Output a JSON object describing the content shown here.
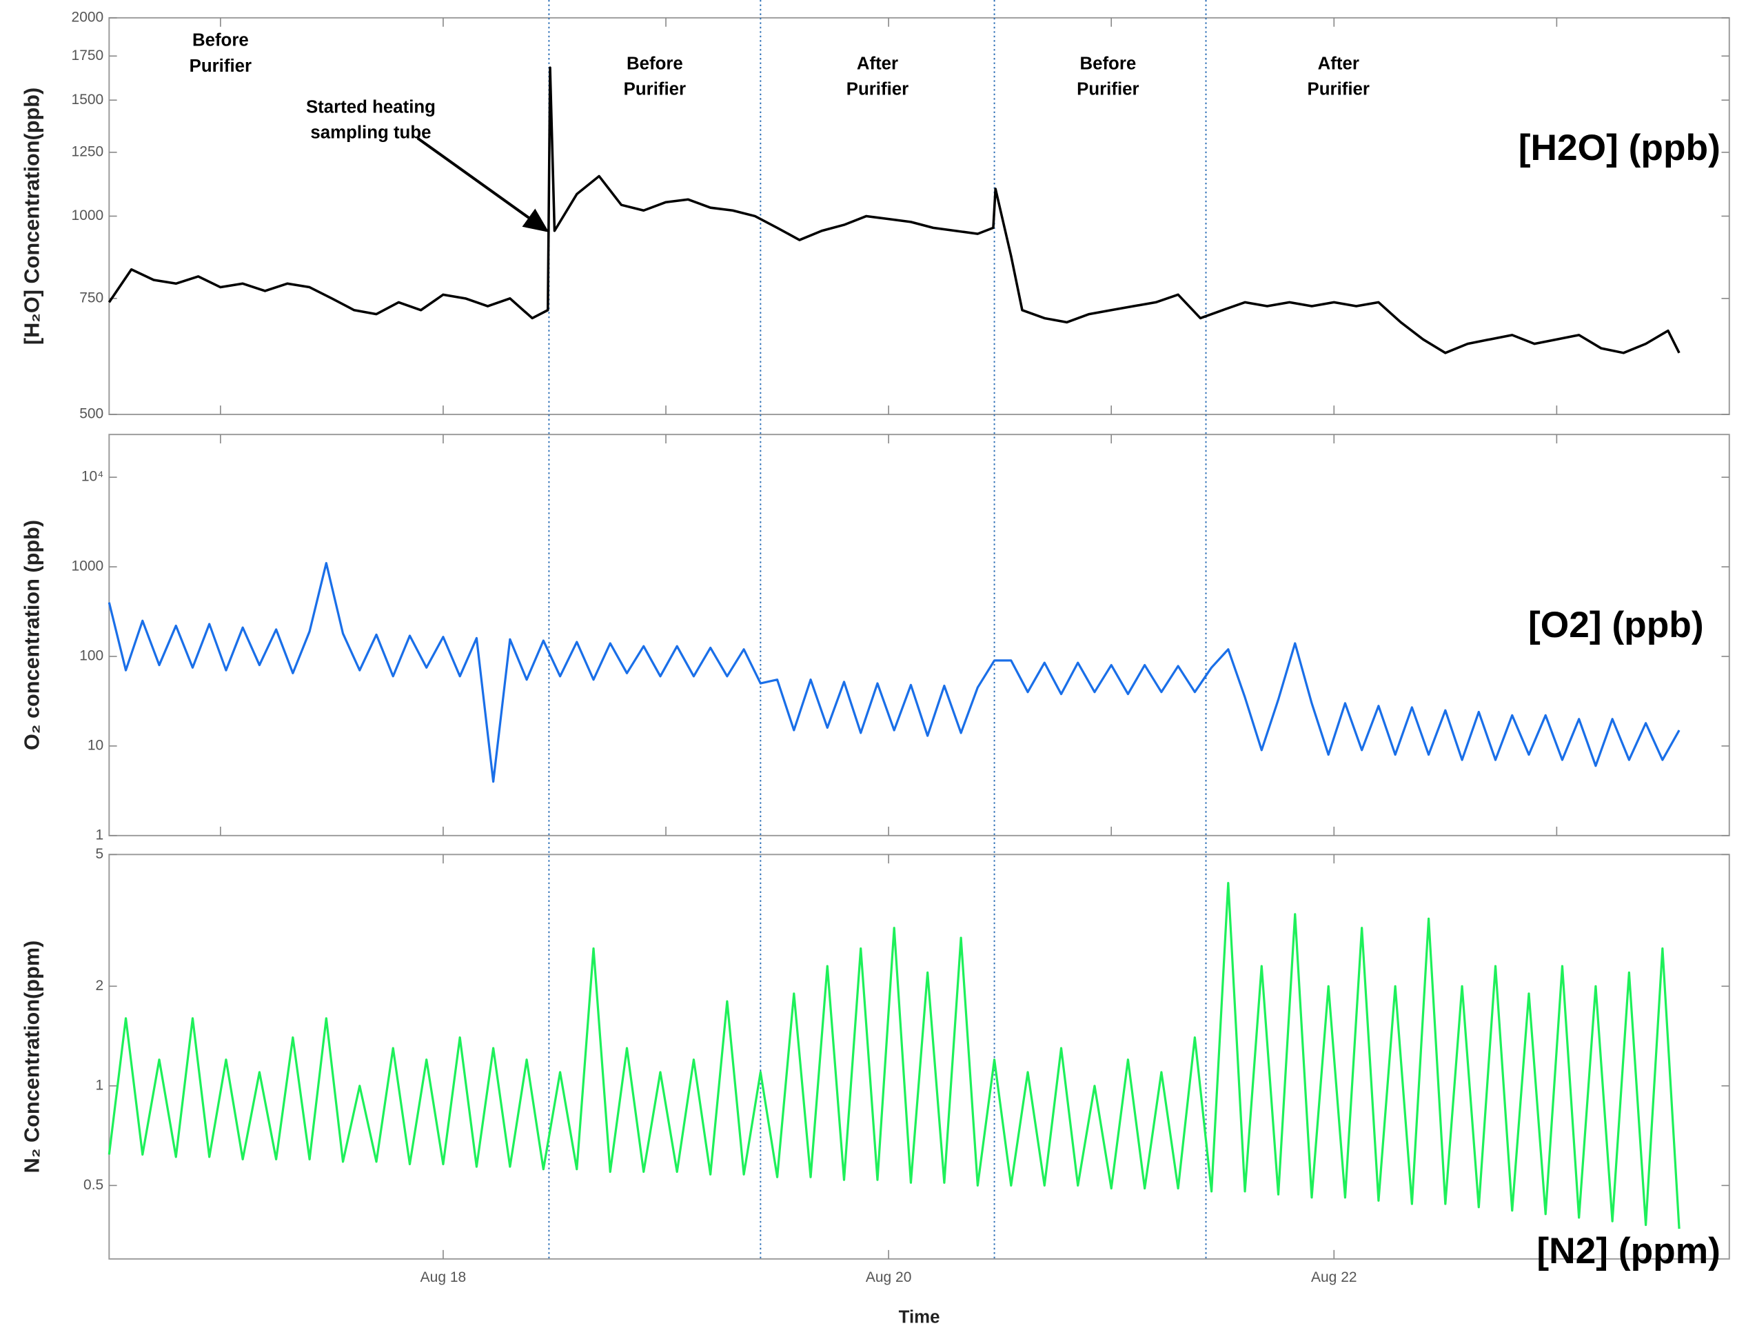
{
  "chart_data": [
    {
      "type": "line",
      "yscale": "log",
      "ylabel": "[H₂O] Concentration(ppb)",
      "xlim": [
        16.5,
        23.775
      ],
      "xticks": [
        17,
        18,
        19,
        20,
        21,
        22,
        23
      ],
      "ylim": [
        500,
        2000
      ],
      "yticks": [
        500,
        750,
        1000,
        1250,
        1500,
        1750,
        2000
      ],
      "event_lines": [
        18.475,
        19.425,
        20.475,
        21.425
      ],
      "annotations": [
        [
          "Before",
          "Purifier"
        ],
        [
          "Started heating",
          "sampling tube"
        ],
        [
          "Before",
          "Purifier"
        ],
        [
          "After",
          "Purifier"
        ],
        [
          "Before",
          "Purifier"
        ],
        [
          "After",
          "Purifier"
        ]
      ],
      "x": [
        16.5,
        16.6,
        16.7,
        16.8,
        16.9,
        17.0,
        17.1,
        17.2,
        17.3,
        17.4,
        17.5,
        17.6,
        17.7,
        17.8,
        17.9,
        18.0,
        18.1,
        18.2,
        18.3,
        18.4,
        18.47,
        18.48,
        18.5,
        18.6,
        18.7,
        18.8,
        18.9,
        19.0,
        19.1,
        19.2,
        19.3,
        19.4,
        19.5,
        19.6,
        19.7,
        19.8,
        19.9,
        20.0,
        20.1,
        20.2,
        20.3,
        20.4,
        20.47,
        20.48,
        20.55,
        20.6,
        20.7,
        20.8,
        20.9,
        21.0,
        21.1,
        21.2,
        21.3,
        21.4,
        21.5,
        21.6,
        21.7,
        21.8,
        21.9,
        22.0,
        22.1,
        22.2,
        22.3,
        22.4,
        22.5,
        22.6,
        22.7,
        22.8,
        22.9,
        23.0,
        23.1,
        23.2,
        23.3,
        23.4,
        23.5,
        23.55
      ],
      "series": [
        {
          "name": "[H2O] (ppb)",
          "color": "#000000",
          "values": [
            740,
            830,
            800,
            790,
            810,
            780,
            790,
            770,
            790,
            780,
            750,
            720,
            710,
            740,
            720,
            760,
            750,
            730,
            750,
            700,
            720,
            1680,
            950,
            1080,
            1150,
            1040,
            1020,
            1050,
            1060,
            1030,
            1020,
            1000,
            960,
            920,
            950,
            970,
            1000,
            990,
            980,
            960,
            950,
            940,
            960,
            1100,
            870,
            720,
            700,
            690,
            710,
            720,
            730,
            740,
            760,
            700,
            720,
            740,
            730,
            740,
            730,
            740,
            730,
            740,
            690,
            650,
            620,
            640,
            650,
            660,
            640,
            650,
            660,
            630,
            620,
            640,
            670,
            620
          ]
        }
      ]
    },
    {
      "type": "line",
      "yscale": "log",
      "ylabel": "O₂ concentration (ppb)",
      "xlim": [
        16.5,
        23.775
      ],
      "xticks": [
        17,
        18,
        19,
        20,
        21,
        22,
        23
      ],
      "ylim": [
        1,
        30000
      ],
      "yticks": [
        1,
        10,
        100,
        1000,
        {
          "value": 10000,
          "label": "10⁴"
        }
      ],
      "x": [
        16.5,
        16.575,
        16.65,
        16.725,
        16.8,
        16.875,
        16.95,
        17.025,
        17.1,
        17.175,
        17.25,
        17.325,
        17.4,
        17.475,
        17.55,
        17.625,
        17.7,
        17.775,
        17.85,
        17.925,
        18,
        18.075,
        18.15,
        18.225,
        18.3,
        18.375,
        18.45,
        18.525,
        18.6,
        18.675,
        18.75,
        18.825,
        18.9,
        18.975,
        19.05,
        19.125,
        19.2,
        19.275,
        19.35,
        19.425,
        19.5,
        19.575,
        19.65,
        19.725,
        19.8,
        19.875,
        19.95,
        20.025,
        20.1,
        20.175,
        20.25,
        20.325,
        20.4,
        20.475,
        20.55,
        20.625,
        20.7,
        20.775,
        20.85,
        20.925,
        21,
        21.075,
        21.15,
        21.225,
        21.3,
        21.375,
        21.45,
        21.525,
        21.6,
        21.675,
        21.75,
        21.825,
        21.9,
        21.975,
        22.05,
        22.125,
        22.2,
        22.275,
        22.35,
        22.425,
        22.5,
        22.575,
        22.65,
        22.725,
        22.8,
        22.875,
        22.95,
        23.025,
        23.1,
        23.175,
        23.25,
        23.325,
        23.4,
        23.475,
        23.55
      ],
      "series": [
        {
          "name": "[O2] (ppb)",
          "color": "#1a6fe8",
          "values": [
            400,
            70,
            250,
            80,
            220,
            75,
            230,
            70,
            210,
            80,
            200,
            65,
            190,
            1100,
            180,
            70,
            175,
            60,
            170,
            75,
            165,
            60,
            160,
            4,
            155,
            55,
            150,
            60,
            145,
            55,
            140,
            65,
            130,
            60,
            130,
            60,
            125,
            60,
            120,
            50,
            55,
            15,
            55,
            16,
            52,
            14,
            50,
            15,
            48,
            13,
            47,
            14,
            45,
            90,
            90,
            40,
            85,
            38,
            85,
            40,
            80,
            38,
            80,
            40,
            78,
            40,
            75,
            120,
            35,
            9,
            33,
            140,
            30,
            8,
            30,
            9,
            28,
            8,
            27,
            8,
            25,
            7,
            24,
            7,
            22,
            8,
            22,
            7,
            20,
            6,
            20,
            7,
            18,
            7,
            15
          ]
        }
      ]
    },
    {
      "type": "line",
      "yscale": "log",
      "ylabel": "N₂ Concentration(ppm)",
      "xlabel": "Time",
      "xlim": [
        16.5,
        23.775
      ],
      "xticks": [
        {
          "value": 18,
          "label": "Aug 18"
        },
        {
          "value": 20,
          "label": "Aug 20"
        },
        {
          "value": 22,
          "label": "Aug 22"
        }
      ],
      "ylim": [
        0.3,
        5
      ],
      "yticks": [
        0.5,
        1,
        2,
        5
      ],
      "x": [
        16.5,
        16.575,
        16.65,
        16.725,
        16.8,
        16.875,
        16.95,
        17.025,
        17.1,
        17.175,
        17.25,
        17.325,
        17.4,
        17.475,
        17.55,
        17.625,
        17.7,
        17.775,
        17.85,
        17.925,
        18,
        18.075,
        18.15,
        18.225,
        18.3,
        18.375,
        18.45,
        18.525,
        18.6,
        18.675,
        18.75,
        18.825,
        18.9,
        18.975,
        19.05,
        19.125,
        19.2,
        19.275,
        19.35,
        19.425,
        19.5,
        19.575,
        19.65,
        19.725,
        19.8,
        19.875,
        19.95,
        20.025,
        20.1,
        20.175,
        20.25,
        20.325,
        20.4,
        20.475,
        20.55,
        20.625,
        20.7,
        20.775,
        20.85,
        20.925,
        21,
        21.075,
        21.15,
        21.225,
        21.3,
        21.375,
        21.45,
        21.525,
        21.6,
        21.675,
        21.75,
        21.825,
        21.9,
        21.975,
        22.05,
        22.125,
        22.2,
        22.275,
        22.35,
        22.425,
        22.5,
        22.575,
        22.65,
        22.725,
        22.8,
        22.875,
        22.95,
        23.025,
        23.1,
        23.175,
        23.25,
        23.325,
        23.4,
        23.475,
        23.55
      ],
      "series": [
        {
          "name": "[N2] (ppm)",
          "color": "#1ef05a",
          "values": [
            0.62,
            1.6,
            0.62,
            1.2,
            0.61,
            1.6,
            0.61,
            1.2,
            0.6,
            1.1,
            0.6,
            1.4,
            0.6,
            1.6,
            0.59,
            1.0,
            0.59,
            1.3,
            0.58,
            1.2,
            0.58,
            1.4,
            0.57,
            1.3,
            0.57,
            1.2,
            0.56,
            1.1,
            0.56,
            2.6,
            0.55,
            1.3,
            0.55,
            1.1,
            0.55,
            1.2,
            0.54,
            1.8,
            0.54,
            1.1,
            0.53,
            1.9,
            0.53,
            2.3,
            0.52,
            2.6,
            0.52,
            3.0,
            0.51,
            2.2,
            0.51,
            2.8,
            0.5,
            1.2,
            0.5,
            1.1,
            0.5,
            1.3,
            0.5,
            1.0,
            0.49,
            1.2,
            0.49,
            1.1,
            0.49,
            1.4,
            0.48,
            4.1,
            0.48,
            2.3,
            0.47,
            3.3,
            0.46,
            2.0,
            0.46,
            3.0,
            0.45,
            2.0,
            0.44,
            3.2,
            0.44,
            2.0,
            0.43,
            2.3,
            0.42,
            1.9,
            0.41,
            2.3,
            0.4,
            2.0,
            0.39,
            2.2,
            0.38,
            2.6,
            0.37
          ]
        }
      ]
    }
  ]
}
